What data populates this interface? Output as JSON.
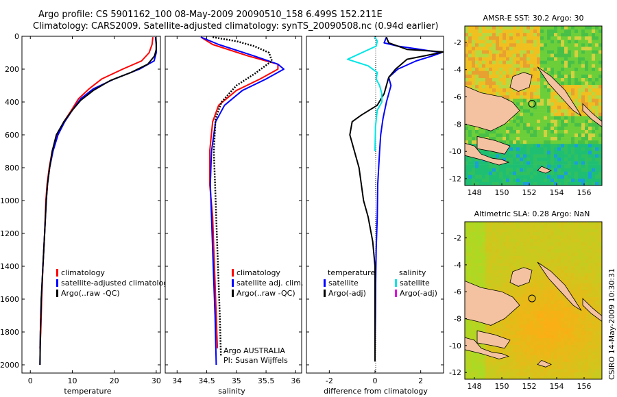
{
  "header": {
    "line1": "Argo profile: CS 5901162_100 08-May-2009 20090510_158 6.499S 152.211E",
    "line2": "Climatology: CARS2009. Satellite-adjusted climatology: synTS_20090508.nc (0.94d earlier)"
  },
  "side_label": "CSIRO 14-May-2009 10:30:31",
  "chart_data": [
    {
      "type": "line",
      "xlabel": "temperature",
      "xlim": [
        -2,
        31
      ],
      "ylim": [
        2050,
        0
      ],
      "xticks": [
        0,
        10,
        20,
        30
      ],
      "yticks": [
        0,
        200,
        400,
        600,
        800,
        1000,
        1200,
        1400,
        1600,
        1800,
        2000
      ],
      "legend": [
        "climatology",
        "satellite-adjusted climatology",
        "Argo(..raw -QC)"
      ],
      "series": [
        {
          "name": "climatology",
          "color": "#ff0000",
          "points": [
            [
              29.2,
              5
            ],
            [
              29,
              50
            ],
            [
              28.3,
              100
            ],
            [
              26.5,
              150
            ],
            [
              22,
              200
            ],
            [
              17,
              260
            ],
            [
              14,
              320
            ],
            [
              11.5,
              380
            ],
            [
              9.8,
              450
            ],
            [
              8,
              520
            ],
            [
              6.5,
              600
            ],
            [
              5.2,
              700
            ],
            [
              4.5,
              800
            ],
            [
              4,
              900
            ],
            [
              3.7,
              1000
            ],
            [
              3.4,
              1200
            ],
            [
              3,
              1400
            ],
            [
              2.7,
              1600
            ],
            [
              2.5,
              1800
            ],
            [
              2.3,
              1900
            ]
          ]
        },
        {
          "name": "satellite-adjusted climatology",
          "color": "#0000ff",
          "points": [
            [
              29.8,
              5
            ],
            [
              30,
              50
            ],
            [
              30,
              100
            ],
            [
              29.5,
              150
            ],
            [
              26,
              200
            ],
            [
              20,
              260
            ],
            [
              15,
              320
            ],
            [
              12,
              380
            ],
            [
              10,
              450
            ],
            [
              8.2,
              520
            ],
            [
              6.6,
              600
            ],
            [
              5.4,
              700
            ],
            [
              4.6,
              800
            ],
            [
              4.1,
              900
            ],
            [
              3.8,
              1000
            ],
            [
              3.4,
              1200
            ],
            [
              3,
              1400
            ],
            [
              2.6,
              1600
            ],
            [
              2.4,
              1800
            ],
            [
              2.3,
              2000
            ]
          ]
        },
        {
          "name": "Argo(..raw -QC)",
          "color": "#000000",
          "points": [
            [
              29.9,
              5
            ],
            [
              30,
              40
            ],
            [
              30,
              80
            ],
            [
              29.6,
              120
            ],
            [
              28,
              170
            ],
            [
              24,
              220
            ],
            [
              19,
              270
            ],
            [
              15,
              330
            ],
            [
              12,
              390
            ],
            [
              10,
              450
            ],
            [
              8,
              520
            ],
            [
              6.2,
              600
            ],
            [
              5.2,
              700
            ],
            [
              4.6,
              800
            ],
            [
              4.1,
              900
            ],
            [
              3.8,
              1000
            ],
            [
              3.4,
              1200
            ],
            [
              3,
              1400
            ],
            [
              2.6,
              1600
            ],
            [
              2.4,
              1800
            ],
            [
              2.3,
              2000
            ]
          ]
        }
      ]
    },
    {
      "type": "line",
      "xlabel": "salinity",
      "xlim": [
        33.8,
        36.1
      ],
      "ylim": [
        2050,
        0
      ],
      "xticks": [
        34,
        34.5,
        35,
        35.5,
        36
      ],
      "legend": [
        "climatology",
        "satellite adj. clim.",
        "Argo(..raw -QC)"
      ],
      "annotations": [
        "Argo AUSTRALIA",
        "PI: Susan Wijffels"
      ],
      "series": [
        {
          "name": "climatology",
          "color": "#ff0000",
          "points": [
            [
              34.4,
              5
            ],
            [
              34.6,
              50
            ],
            [
              35.2,
              120
            ],
            [
              35.7,
              170
            ],
            [
              35.7,
              200
            ],
            [
              35.4,
              260
            ],
            [
              35,
              330
            ],
            [
              34.7,
              420
            ],
            [
              34.6,
              520
            ],
            [
              34.55,
              700
            ],
            [
              34.55,
              900
            ],
            [
              34.6,
              1100
            ],
            [
              34.62,
              1300
            ],
            [
              34.64,
              1500
            ],
            [
              34.66,
              1700
            ],
            [
              34.68,
              1900
            ]
          ]
        },
        {
          "name": "satellite adj. clim.",
          "color": "#0000ff",
          "points": [
            [
              34.4,
              5
            ],
            [
              34.7,
              50
            ],
            [
              35.3,
              120
            ],
            [
              35.7,
              170
            ],
            [
              35.8,
              200
            ],
            [
              35.5,
              260
            ],
            [
              35.1,
              330
            ],
            [
              34.8,
              420
            ],
            [
              34.65,
              520
            ],
            [
              34.58,
              700
            ],
            [
              34.56,
              900
            ],
            [
              34.58,
              1100
            ],
            [
              34.6,
              1300
            ],
            [
              34.62,
              1500
            ],
            [
              34.64,
              1700
            ],
            [
              34.66,
              2000
            ]
          ]
        },
        {
          "name": "Argo(..raw -QC)",
          "color": "#000000",
          "points": [
            [
              34.6,
              5
            ],
            [
              35,
              30
            ],
            [
              35.3,
              60
            ],
            [
              35.55,
              100
            ],
            [
              35.6,
              150
            ],
            [
              35.3,
              230
            ],
            [
              35,
              300
            ],
            [
              34.75,
              400
            ],
            [
              34.65,
              500
            ],
            [
              34.62,
              700
            ],
            [
              34.64,
              900
            ],
            [
              34.66,
              1100
            ],
            [
              34.68,
              1300
            ],
            [
              34.7,
              1500
            ],
            [
              34.72,
              1700
            ],
            [
              34.74,
              1950
            ]
          ]
        }
      ]
    },
    {
      "type": "line",
      "xlabel": "difference from climatology",
      "xlim": [
        -3,
        3
      ],
      "ylim": [
        2050,
        0
      ],
      "xticks": [
        -2,
        0,
        2
      ],
      "legend": [
        "temperature",
        "satellite",
        "Argo(-adj)",
        "salinity",
        "satellite",
        "Argo(-adj)"
      ],
      "series": [
        {
          "name": "satellite",
          "color": "#0000ff",
          "points": [
            [
              0.5,
              5
            ],
            [
              0.4,
              40
            ],
            [
              1,
              60
            ],
            [
              2,
              80
            ],
            [
              2.9,
              100
            ],
            [
              2.5,
              120
            ],
            [
              1.8,
              150
            ],
            [
              1,
              200
            ],
            [
              0.6,
              250
            ],
            [
              0.7,
              300
            ],
            [
              0.5,
              400
            ],
            [
              0.35,
              500
            ],
            [
              0.25,
              600
            ],
            [
              0.2,
              700
            ],
            [
              0.12,
              900
            ],
            [
              0.1,
              1100
            ],
            [
              0.05,
              1300
            ],
            [
              0.03,
              1500
            ],
            [
              0.02,
              1700
            ],
            [
              0,
              1900
            ]
          ]
        },
        {
          "name": "Argo(-adj)",
          "color": "#000000",
          "points": [
            [
              0.5,
              5
            ],
            [
              0.6,
              40
            ],
            [
              1.4,
              80
            ],
            [
              3,
              95
            ],
            [
              2.5,
              110
            ],
            [
              1.4,
              140
            ],
            [
              0.9,
              200
            ],
            [
              0.6,
              250
            ],
            [
              0.4,
              350
            ],
            [
              0.1,
              420
            ],
            [
              -0.6,
              480
            ],
            [
              -1,
              520
            ],
            [
              -1.1,
              600
            ],
            [
              -0.9,
              700
            ],
            [
              -0.7,
              800
            ],
            [
              -0.5,
              1000
            ],
            [
              -0.3,
              1100
            ],
            [
              -0.1,
              1250
            ],
            [
              0,
              1400
            ],
            [
              0,
              1600
            ],
            [
              0,
              1800
            ],
            [
              0,
              1980
            ]
          ]
        },
        {
          "name": "satellite",
          "color": "#00e5e5",
          "points": [
            [
              0,
              5
            ],
            [
              0.1,
              30
            ],
            [
              0.05,
              60
            ],
            [
              -1.2,
              140
            ],
            [
              -0.3,
              180
            ],
            [
              0.1,
              220
            ],
            [
              0.05,
              260
            ],
            [
              0.2,
              300
            ],
            [
              0.3,
              350
            ],
            [
              0.3,
              400
            ],
            [
              0.1,
              450
            ],
            [
              0.02,
              550
            ],
            [
              0,
              700
            ]
          ]
        }
      ]
    },
    {
      "type": "heatmap",
      "title": "AMSR-E SST: 30.2 Argo: 30",
      "xlim": [
        147.3,
        157.3
      ],
      "ylim": [
        -12.5,
        -0.8
      ],
      "xticks": [
        148,
        150,
        152,
        154,
        156
      ],
      "yticks": [
        -2,
        -4,
        -6,
        -8,
        -10,
        -12
      ],
      "marker": [
        152.2,
        -6.5
      ]
    },
    {
      "type": "heatmap",
      "title": "Altimetric SLA: 0.28 Argo: NaN",
      "xlim": [
        147.3,
        157.3
      ],
      "ylim": [
        -12.5,
        -0.8
      ],
      "xticks": [
        148,
        150,
        152,
        154,
        156
      ],
      "yticks": [
        -2,
        -4,
        -6,
        -8,
        -10,
        -12
      ],
      "marker": [
        152.2,
        -6.5
      ]
    }
  ]
}
